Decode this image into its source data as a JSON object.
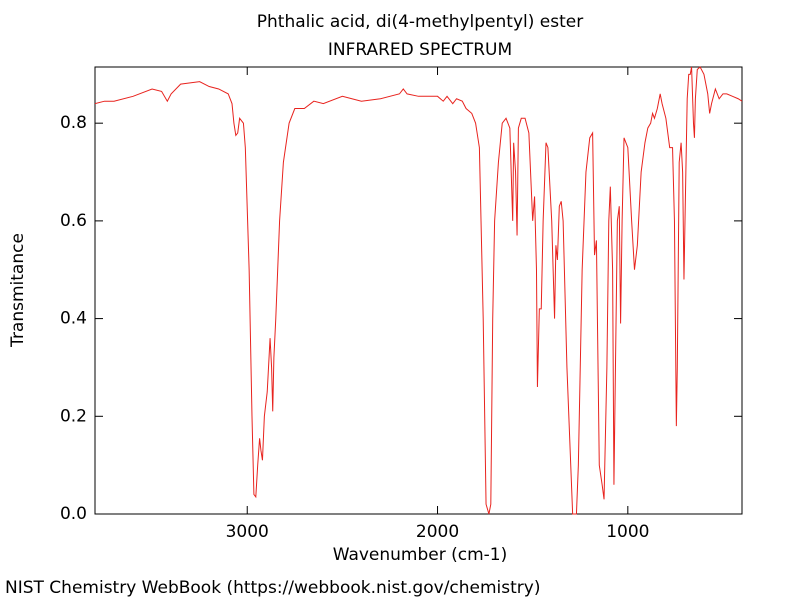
{
  "chart_data": {
    "type": "line",
    "title": "Phthalic acid, di(4-methylpentyl) ester",
    "subtitle": "INFRARED SPECTRUM",
    "x_label": "Wavenumber (cm-1)",
    "y_label": "Transmitance",
    "footer": "NIST Chemistry WebBook (https://webbook.nist.gov/chemistry)",
    "color": "#e8231e",
    "xlim": [
      3800,
      400
    ],
    "ylim": [
      0,
      0.915
    ],
    "xticks": [
      3000,
      2000,
      1000
    ],
    "yticks": [
      {
        "value": 0,
        "label": "0.0"
      },
      0.2,
      0.4,
      0.6,
      0.8
    ],
    "x": [
      3800,
      3750,
      3700,
      3600,
      3500,
      3450,
      3420,
      3400,
      3350,
      3250,
      3200,
      3150,
      3100,
      3080,
      3070,
      3060,
      3050,
      3040,
      3020,
      3010,
      2990,
      2975,
      2965,
      2955,
      2945,
      2935,
      2928,
      2920,
      2910,
      2895,
      2880,
      2872,
      2866,
      2860,
      2850,
      2830,
      2810,
      2780,
      2750,
      2700,
      2650,
      2600,
      2500,
      2450,
      2400,
      2300,
      2200,
      2180,
      2160,
      2100,
      2000,
      1970,
      1950,
      1920,
      1900,
      1870,
      1850,
      1820,
      1800,
      1780,
      1760,
      1745,
      1730,
      1720,
      1710,
      1700,
      1680,
      1660,
      1640,
      1620,
      1605,
      1600,
      1590,
      1582,
      1575,
      1560,
      1540,
      1520,
      1500,
      1490,
      1480,
      1475,
      1465,
      1455,
      1445,
      1430,
      1420,
      1400,
      1385,
      1378,
      1370,
      1360,
      1350,
      1340,
      1320,
      1300,
      1290,
      1270,
      1260,
      1240,
      1220,
      1200,
      1185,
      1175,
      1165,
      1150,
      1135,
      1125,
      1110,
      1100,
      1092,
      1080,
      1073,
      1065,
      1055,
      1045,
      1038,
      1030,
      1020,
      1000,
      980,
      965,
      950,
      930,
      910,
      895,
      880,
      870,
      860,
      845,
      830,
      820,
      800,
      780,
      765,
      755,
      745,
      740,
      730,
      720,
      712,
      705,
      695,
      688,
      680,
      672,
      665,
      655,
      650,
      645,
      635,
      620,
      600,
      580,
      570,
      560,
      540,
      520,
      500,
      480,
      450,
      420,
      400
    ],
    "values": [
      0.84,
      0.845,
      0.845,
      0.855,
      0.87,
      0.865,
      0.845,
      0.86,
      0.88,
      0.885,
      0.875,
      0.87,
      0.86,
      0.84,
      0.8,
      0.775,
      0.78,
      0.81,
      0.8,
      0.75,
      0.5,
      0.2,
      0.04,
      0.035,
      0.1,
      0.155,
      0.13,
      0.11,
      0.2,
      0.25,
      0.36,
      0.3,
      0.21,
      0.32,
      0.4,
      0.6,
      0.72,
      0.8,
      0.83,
      0.83,
      0.845,
      0.84,
      0.855,
      0.85,
      0.845,
      0.85,
      0.86,
      0.87,
      0.86,
      0.855,
      0.855,
      0.845,
      0.855,
      0.84,
      0.85,
      0.845,
      0.83,
      0.82,
      0.8,
      0.75,
      0.4,
      0.02,
      0.0,
      0.02,
      0.4,
      0.6,
      0.72,
      0.8,
      0.81,
      0.79,
      0.6,
      0.76,
      0.7,
      0.57,
      0.79,
      0.81,
      0.81,
      0.78,
      0.6,
      0.65,
      0.5,
      0.26,
      0.42,
      0.42,
      0.6,
      0.76,
      0.75,
      0.6,
      0.4,
      0.55,
      0.52,
      0.63,
      0.64,
      0.6,
      0.3,
      0.1,
      0.0,
      0.0,
      0.1,
      0.5,
      0.7,
      0.77,
      0.78,
      0.53,
      0.56,
      0.1,
      0.06,
      0.03,
      0.3,
      0.6,
      0.67,
      0.5,
      0.06,
      0.3,
      0.6,
      0.63,
      0.39,
      0.6,
      0.77,
      0.75,
      0.6,
      0.5,
      0.55,
      0.7,
      0.76,
      0.79,
      0.8,
      0.82,
      0.81,
      0.83,
      0.86,
      0.84,
      0.81,
      0.75,
      0.75,
      0.6,
      0.18,
      0.3,
      0.72,
      0.76,
      0.7,
      0.48,
      0.7,
      0.85,
      0.9,
      0.9,
      0.915,
      0.8,
      0.77,
      0.85,
      0.91,
      0.915,
      0.9,
      0.86,
      0.82,
      0.84,
      0.87,
      0.85,
      0.86,
      0.86,
      0.855,
      0.85,
      0.845
    ]
  }
}
